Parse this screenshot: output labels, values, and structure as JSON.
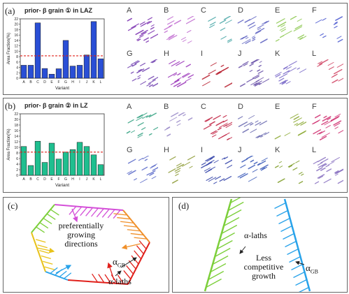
{
  "panel_a": {
    "label": "(a)",
    "title": "prior- β grain ① in LAZ",
    "variants": [
      "A",
      "B",
      "C",
      "D",
      "E",
      "F",
      "G",
      "H",
      "I",
      "J",
      "K",
      "L"
    ],
    "ylabel": "Area Fraction(%)",
    "xlabel": "Variant",
    "yticks": [
      "0",
      "2",
      "4",
      "6",
      "8",
      "10",
      "12",
      "14",
      "16",
      "18",
      "20",
      "22"
    ],
    "bar_color": "#2a4fd6",
    "threshold_color": "#e0201b"
  },
  "panel_b": {
    "label": "(b)",
    "title": "prior- β grain ② in LZ",
    "variants": [
      "A",
      "B",
      "C",
      "D",
      "E",
      "F",
      "G",
      "H",
      "I",
      "J",
      "K",
      "L"
    ],
    "ylabel": "Area Fraction(%)",
    "xlabel": "Variant",
    "yticks": [
      "0",
      "2",
      "4",
      "6",
      "8",
      "10",
      "12",
      "14",
      "16",
      "18",
      "20",
      "22"
    ],
    "bar_color": "#1fbf8f",
    "threshold_color": "#e0201b"
  },
  "panel_c": {
    "label": "(c)",
    "text_growing": "preferentially growing directions",
    "text_gb": "α",
    "text_gb_sub": "GB",
    "text_laths": "α-laths"
  },
  "panel_d": {
    "label": "(d)",
    "text_laths": "α-laths",
    "text_growth": "Less competitive growth",
    "text_gb": "α",
    "text_gb_sub": "GB"
  },
  "chart_data": [
    {
      "type": "bar",
      "title": "prior- β grain ① in LAZ",
      "categories": [
        "A",
        "B",
        "C",
        "D",
        "E",
        "F",
        "G",
        "H",
        "I",
        "J",
        "K",
        "L"
      ],
      "values": [
        4.8,
        4.8,
        20.5,
        3.6,
        1.5,
        3.5,
        14.0,
        4.5,
        4.8,
        8.6,
        21.0,
        7.2
      ],
      "threshold": 8.3,
      "xlabel": "Variant",
      "ylabel": "Area Fraction(%)",
      "ylim": [
        0,
        22
      ]
    },
    {
      "type": "bar",
      "title": "prior- β grain ② in LZ",
      "categories": [
        "A",
        "B",
        "C",
        "D",
        "E",
        "F",
        "G",
        "H",
        "I",
        "J",
        "K",
        "L"
      ],
      "values": [
        10.3,
        3.5,
        12.2,
        4.6,
        11.5,
        5.8,
        8.3,
        9.2,
        11.8,
        10.3,
        7.3,
        3.8
      ],
      "threshold": 8.3,
      "xlabel": "Variant",
      "ylabel": "Area Fraction(%)",
      "ylim": [
        0,
        22
      ]
    }
  ]
}
